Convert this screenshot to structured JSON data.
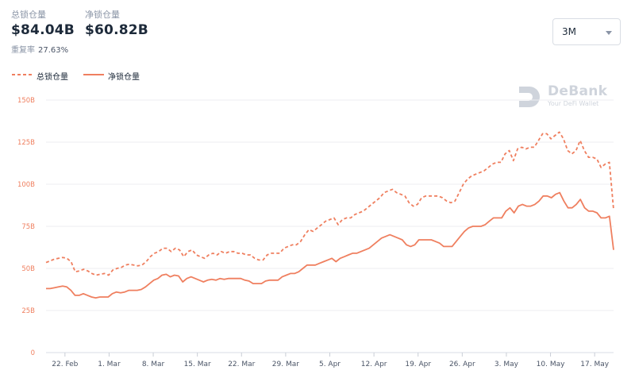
{
  "header": {
    "tvl": {
      "label": "总锁仓量",
      "value": "$84.04B"
    },
    "net_tvl": {
      "label": "净锁仓量",
      "value": "$60.82B"
    },
    "reuse_rate": {
      "label": "重复率",
      "value": "27.63%"
    }
  },
  "range_selector": {
    "value": "3M"
  },
  "watermark": {
    "title": "DeBank",
    "subtitle": "Your DeFi Wallet"
  },
  "colors": {
    "line": "#ef7f5f",
    "grid": "#eceef2",
    "tick": "#ef7f5f",
    "xtick": "#4a5466",
    "watermark": "#cfd4dc"
  },
  "chart_data": {
    "type": "line",
    "y_ticks": [
      "0",
      "25B",
      "50B",
      "75B",
      "100B",
      "125B",
      "150B"
    ],
    "ylim": [
      0,
      150
    ],
    "x_ticks": [
      "22. Feb",
      "1. Mar",
      "8. Mar",
      "15. Mar",
      "22. Mar",
      "29. Mar",
      "5. Apr",
      "12. Apr",
      "19. Apr",
      "26. Apr",
      "3. May",
      "10. May",
      "17. May"
    ],
    "x_tick_positions": [
      0,
      7,
      14,
      21,
      28,
      35,
      42,
      49,
      56,
      63,
      70,
      77,
      84
    ],
    "xlim": [
      -3,
      87
    ],
    "grid": true,
    "legend_position": "top-left",
    "series": [
      {
        "name": "总锁仓量",
        "style": "dashed",
        "values": [
          53.5,
          54.5,
          55.5,
          56,
          56.5,
          56,
          54,
          48,
          48.5,
          49.5,
          48.5,
          47,
          46,
          46.5,
          47,
          46,
          49,
          50,
          50.5,
          52,
          52.5,
          52,
          51.5,
          52,
          54,
          57,
          59,
          60,
          62,
          62,
          60,
          62,
          61,
          57,
          60,
          61,
          58,
          57,
          56,
          58,
          59,
          58,
          60,
          59,
          60,
          60,
          59,
          59,
          58,
          58,
          56,
          55,
          55,
          58,
          59,
          59,
          59,
          62,
          63,
          64,
          64,
          66,
          70,
          73,
          72,
          74,
          76,
          78,
          79,
          80,
          76,
          79,
          80,
          80,
          82,
          83,
          84,
          86,
          88,
          90,
          92,
          95,
          96,
          97,
          95,
          94,
          93,
          89,
          87,
          88,
          92,
          93,
          93,
          93,
          93,
          92,
          90,
          89,
          90,
          95,
          100,
          103,
          105,
          106,
          107,
          108,
          110,
          112,
          113,
          113,
          118,
          120,
          114,
          121,
          122,
          121,
          122,
          122,
          126,
          130,
          130,
          127,
          129,
          131,
          127,
          120,
          118,
          120,
          126,
          120,
          116,
          116,
          115,
          110,
          112,
          113,
          85
        ],
        "values_meta": "interpolated"
      },
      {
        "name": "净锁仓量",
        "style": "solid",
        "values": [
          38,
          38,
          38.5,
          39,
          39.5,
          39,
          37,
          34,
          34,
          35,
          34,
          33,
          32.5,
          33,
          33,
          33,
          35,
          36,
          35.5,
          36,
          37,
          37,
          37,
          37.5,
          39,
          41,
          43,
          44,
          46,
          46.5,
          45,
          46,
          45.5,
          42,
          44,
          45,
          44,
          43,
          42,
          43,
          43.5,
          43,
          44,
          43.5,
          44,
          44,
          44,
          44,
          43,
          42.5,
          41,
          41,
          41,
          42.5,
          43,
          43,
          43,
          45,
          46,
          47,
          47,
          48,
          50,
          52,
          52,
          52,
          53,
          54,
          55,
          56,
          54,
          56,
          57,
          58,
          59,
          59,
          60,
          61,
          62,
          64,
          66,
          68,
          69,
          70,
          69,
          68,
          67,
          64,
          63,
          64,
          67,
          67,
          67,
          67,
          66,
          65,
          63,
          63,
          63,
          66,
          69,
          72,
          74,
          75,
          75,
          75,
          76,
          78,
          80,
          80,
          80,
          84,
          86,
          83,
          87,
          88,
          87,
          87,
          88,
          90,
          93,
          93,
          92,
          94,
          95,
          90,
          86,
          86,
          88,
          91,
          86,
          84,
          84,
          83,
          80,
          80,
          81,
          61
        ]
      }
    ]
  }
}
